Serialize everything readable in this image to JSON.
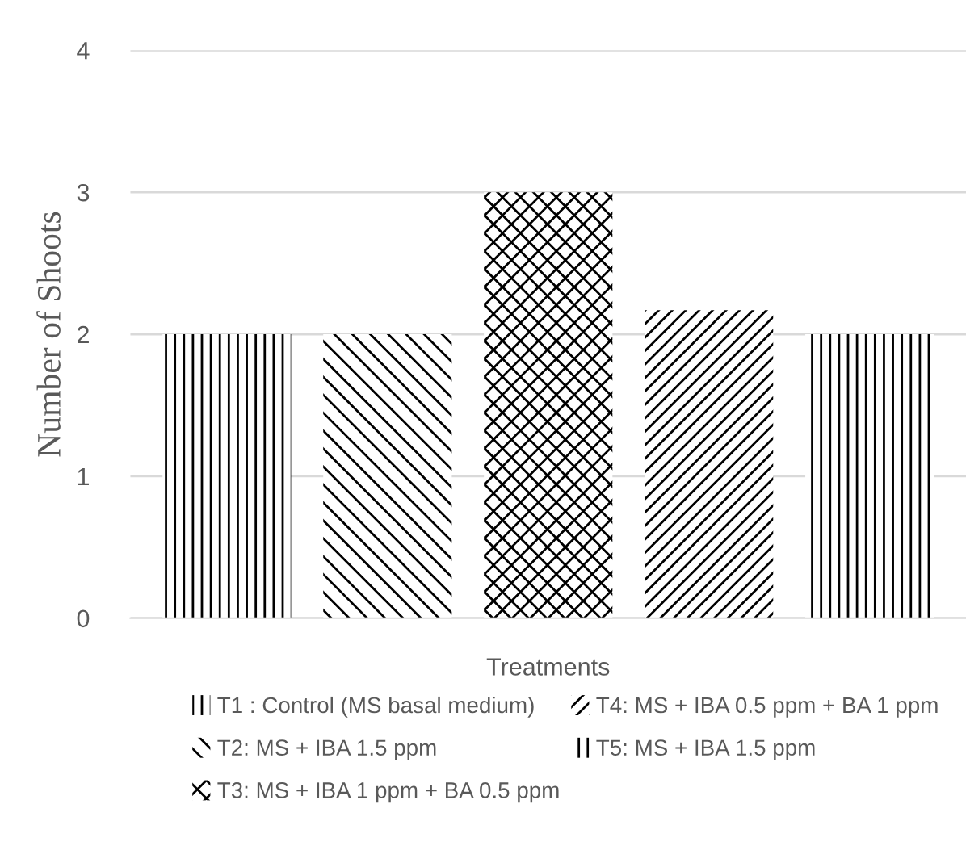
{
  "chart_data": {
    "type": "bar",
    "xlabel": "Treatments",
    "ylabel": "Number of Shoots",
    "categories": [
      null,
      null,
      null,
      null,
      null
    ],
    "series": [
      {
        "name": "T1 : Control (MS basal medium)",
        "color": "#000000",
        "values": [
          2,
          null,
          null,
          null,
          null
        ]
      },
      {
        "name": "T2: MS + IBA 1.5 ppm",
        "color": "#000000",
        "values": [
          null,
          2,
          null,
          null,
          null
        ]
      },
      {
        "name": "T3: MS + IBA 1 ppm + BA 0.5 ppm",
        "color": "#000000",
        "values": [
          null,
          null,
          3,
          null,
          null
        ]
      },
      {
        "name": "T4: MS + IBA 0.5 ppm + BA 1 ppm",
        "color": "#000000",
        "values": [
          null,
          null,
          null,
          2.17,
          null
        ]
      },
      {
        "name": "T5: MS + IBA 1.5 ppm",
        "color": "#000000",
        "values": [
          null,
          null,
          null,
          null,
          2
        ]
      }
    ],
    "ylim": [
      0,
      4
    ],
    "yticks": [
      0,
      1,
      2,
      3,
      4
    ],
    "grid": "y",
    "legend": "bottom"
  }
}
